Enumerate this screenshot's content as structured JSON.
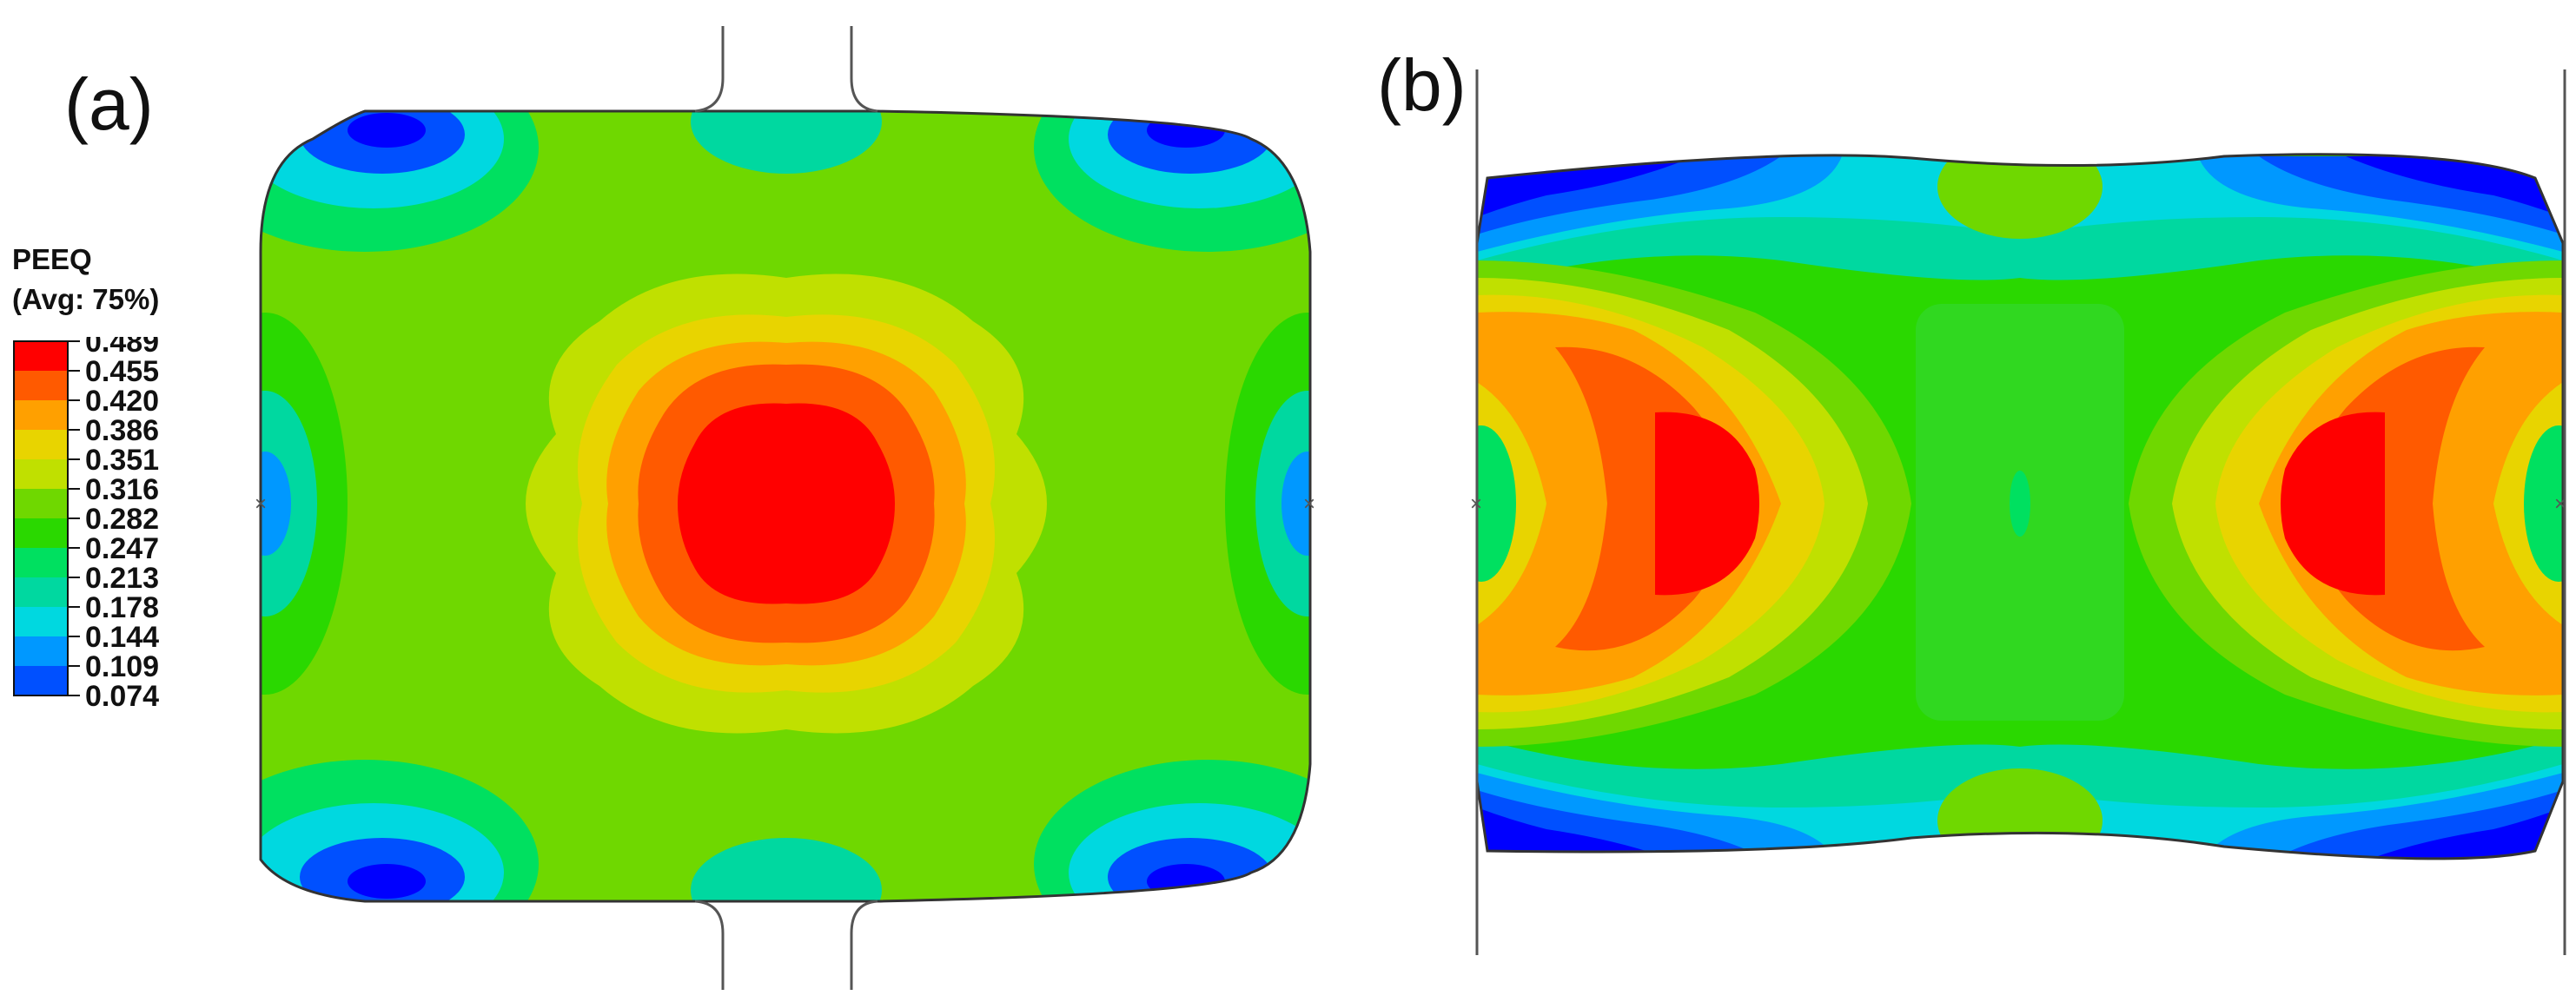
{
  "panels": {
    "a": {
      "label": "(a)"
    },
    "b": {
      "label": "(b)"
    }
  },
  "legend": {
    "title": "PEEQ",
    "subtitle": "(Avg: 75%)",
    "entries": [
      {
        "value": "0.489",
        "color": "#ff0000"
      },
      {
        "value": "0.455",
        "color": "#ff5a00"
      },
      {
        "value": "0.420",
        "color": "#ffa000"
      },
      {
        "value": "0.386",
        "color": "#e8d400"
      },
      {
        "value": "0.351",
        "color": "#c0e000"
      },
      {
        "value": "0.316",
        "color": "#6fd800"
      },
      {
        "value": "0.282",
        "color": "#2ad800"
      },
      {
        "value": "0.247",
        "color": "#00e060"
      },
      {
        "value": "0.213",
        "color": "#00d8a0"
      },
      {
        "value": "0.178",
        "color": "#00d8e0"
      },
      {
        "value": "0.144",
        "color": "#0098ff"
      },
      {
        "value": "0.109",
        "color": "#0050ff"
      },
      {
        "value": "0.074",
        "color": "#0000ff"
      }
    ]
  }
}
